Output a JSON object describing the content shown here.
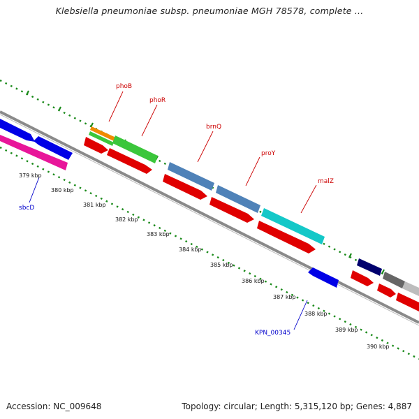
{
  "title": "Klebsiella pneumoniae subsp. pneumoniae MGH 78578, complete ...",
  "footer": {
    "accession": "Accession: NC_009648",
    "summary": "Topology: circular; Length: 5,315,120 bp; Genes: 4,887"
  },
  "scale": {
    "unit": "kbp",
    "ticks": [
      "379 kbp",
      "380 kbp",
      "381 kbp",
      "382 kbp",
      "383 kbp",
      "384 kbp",
      "385 kbp",
      "386 kbp",
      "387 kbp",
      "388 kbp",
      "389 kbp",
      "390 kbp"
    ]
  },
  "labels": {
    "phoB": "phoB",
    "phoR": "phoR",
    "brnQ": "brnQ",
    "proY": "proY",
    "malZ": "malZ",
    "sbcD": "sbcD",
    "KPN_00345": "KPN_00345"
  },
  "colors": {
    "backbone": "#8a8a8a",
    "dots": "#1a8a1a",
    "red": "#e00000",
    "blue": "#0000e6",
    "magenta": "#e8169a",
    "orange": "#f08a00",
    "green": "#3bc63b",
    "steelblue": "#4f82b8",
    "cyan": "#14c8c8",
    "navy": "#00006e",
    "gray": "#666666",
    "silver": "#bdbdbd",
    "label_red": "#cc0000",
    "label_blue": "#0000cc"
  }
}
